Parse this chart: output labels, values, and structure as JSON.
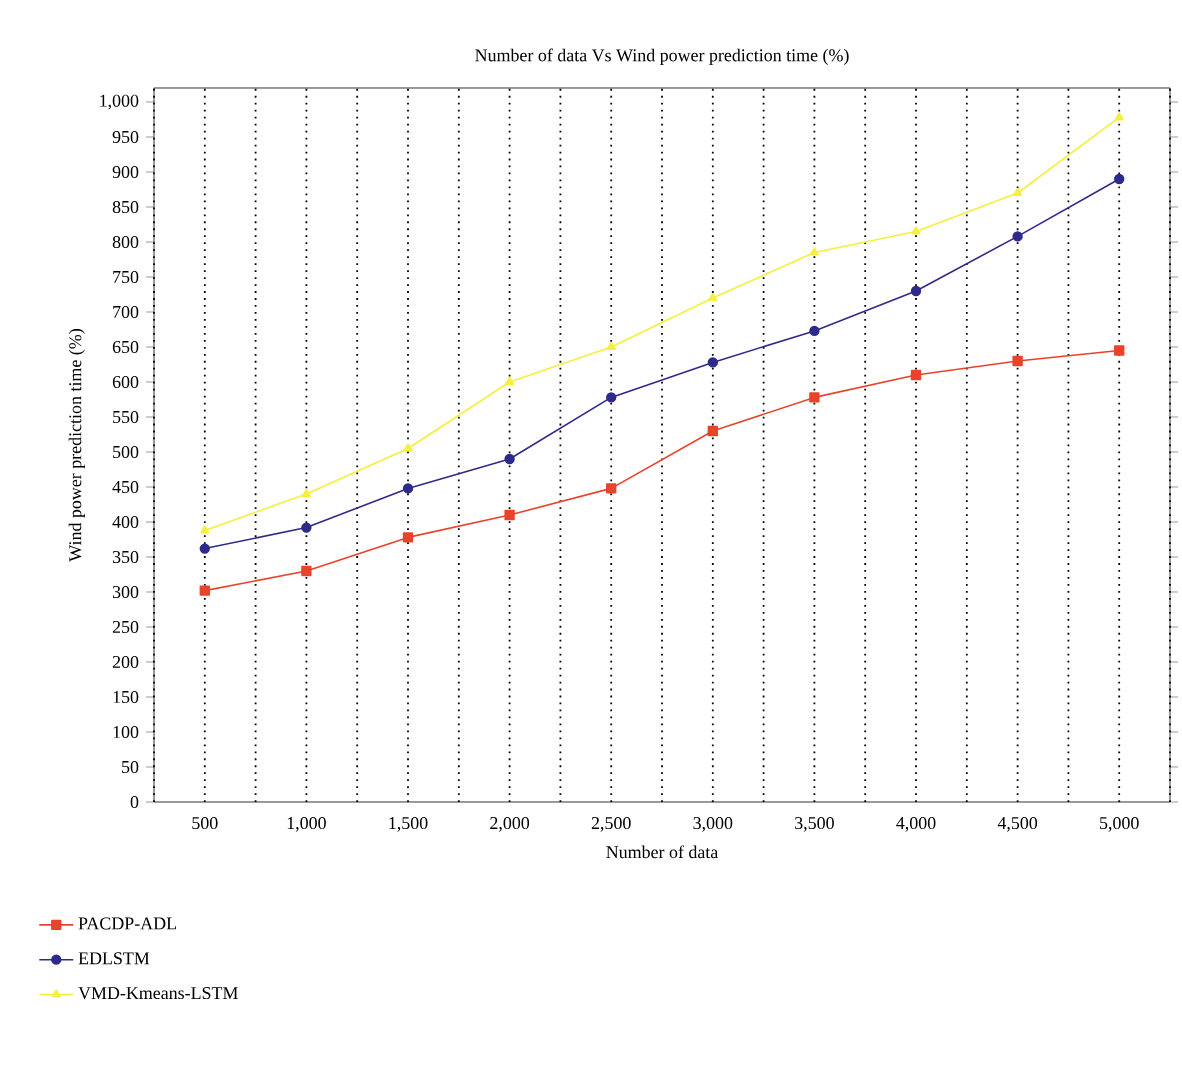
{
  "chart_data": {
    "type": "line",
    "title": "Number of data Vs Wind power prediction time (%)",
    "xlabel": "Number of data",
    "ylabel": "Wind power prediction time (%)",
    "categories": [
      "500",
      "1,000",
      "1,500",
      "2,000",
      "2,500",
      "3,000",
      "3,500",
      "4,000",
      "4,500",
      "5,000"
    ],
    "series": [
      {
        "name": "PACDP-ADL",
        "color": "#e8432b",
        "marker": "square",
        "values": [
          302,
          330,
          378,
          410,
          448,
          530,
          578,
          610,
          630,
          645
        ]
      },
      {
        "name": "EDLSTM",
        "color": "#2e2a8a",
        "marker": "circle",
        "values": [
          362,
          392,
          448,
          490,
          578,
          628,
          673,
          730,
          808,
          890
        ]
      },
      {
        "name": "VMD-Kmeans-LSTM",
        "color": "#f5f03a",
        "marker": "triangle",
        "values": [
          388,
          440,
          505,
          600,
          650,
          720,
          785,
          815,
          870,
          978
        ]
      }
    ],
    "ylim": [
      0,
      1020
    ],
    "yticks": [
      0,
      50,
      100,
      150,
      200,
      250,
      300,
      350,
      400,
      450,
      500,
      550,
      600,
      650,
      700,
      750,
      800,
      850,
      900,
      950,
      {
        "value": 1000,
        "label": "1,000"
      }
    ],
    "grid": "x",
    "legend": "bottom",
    "line_style": "solid"
  }
}
